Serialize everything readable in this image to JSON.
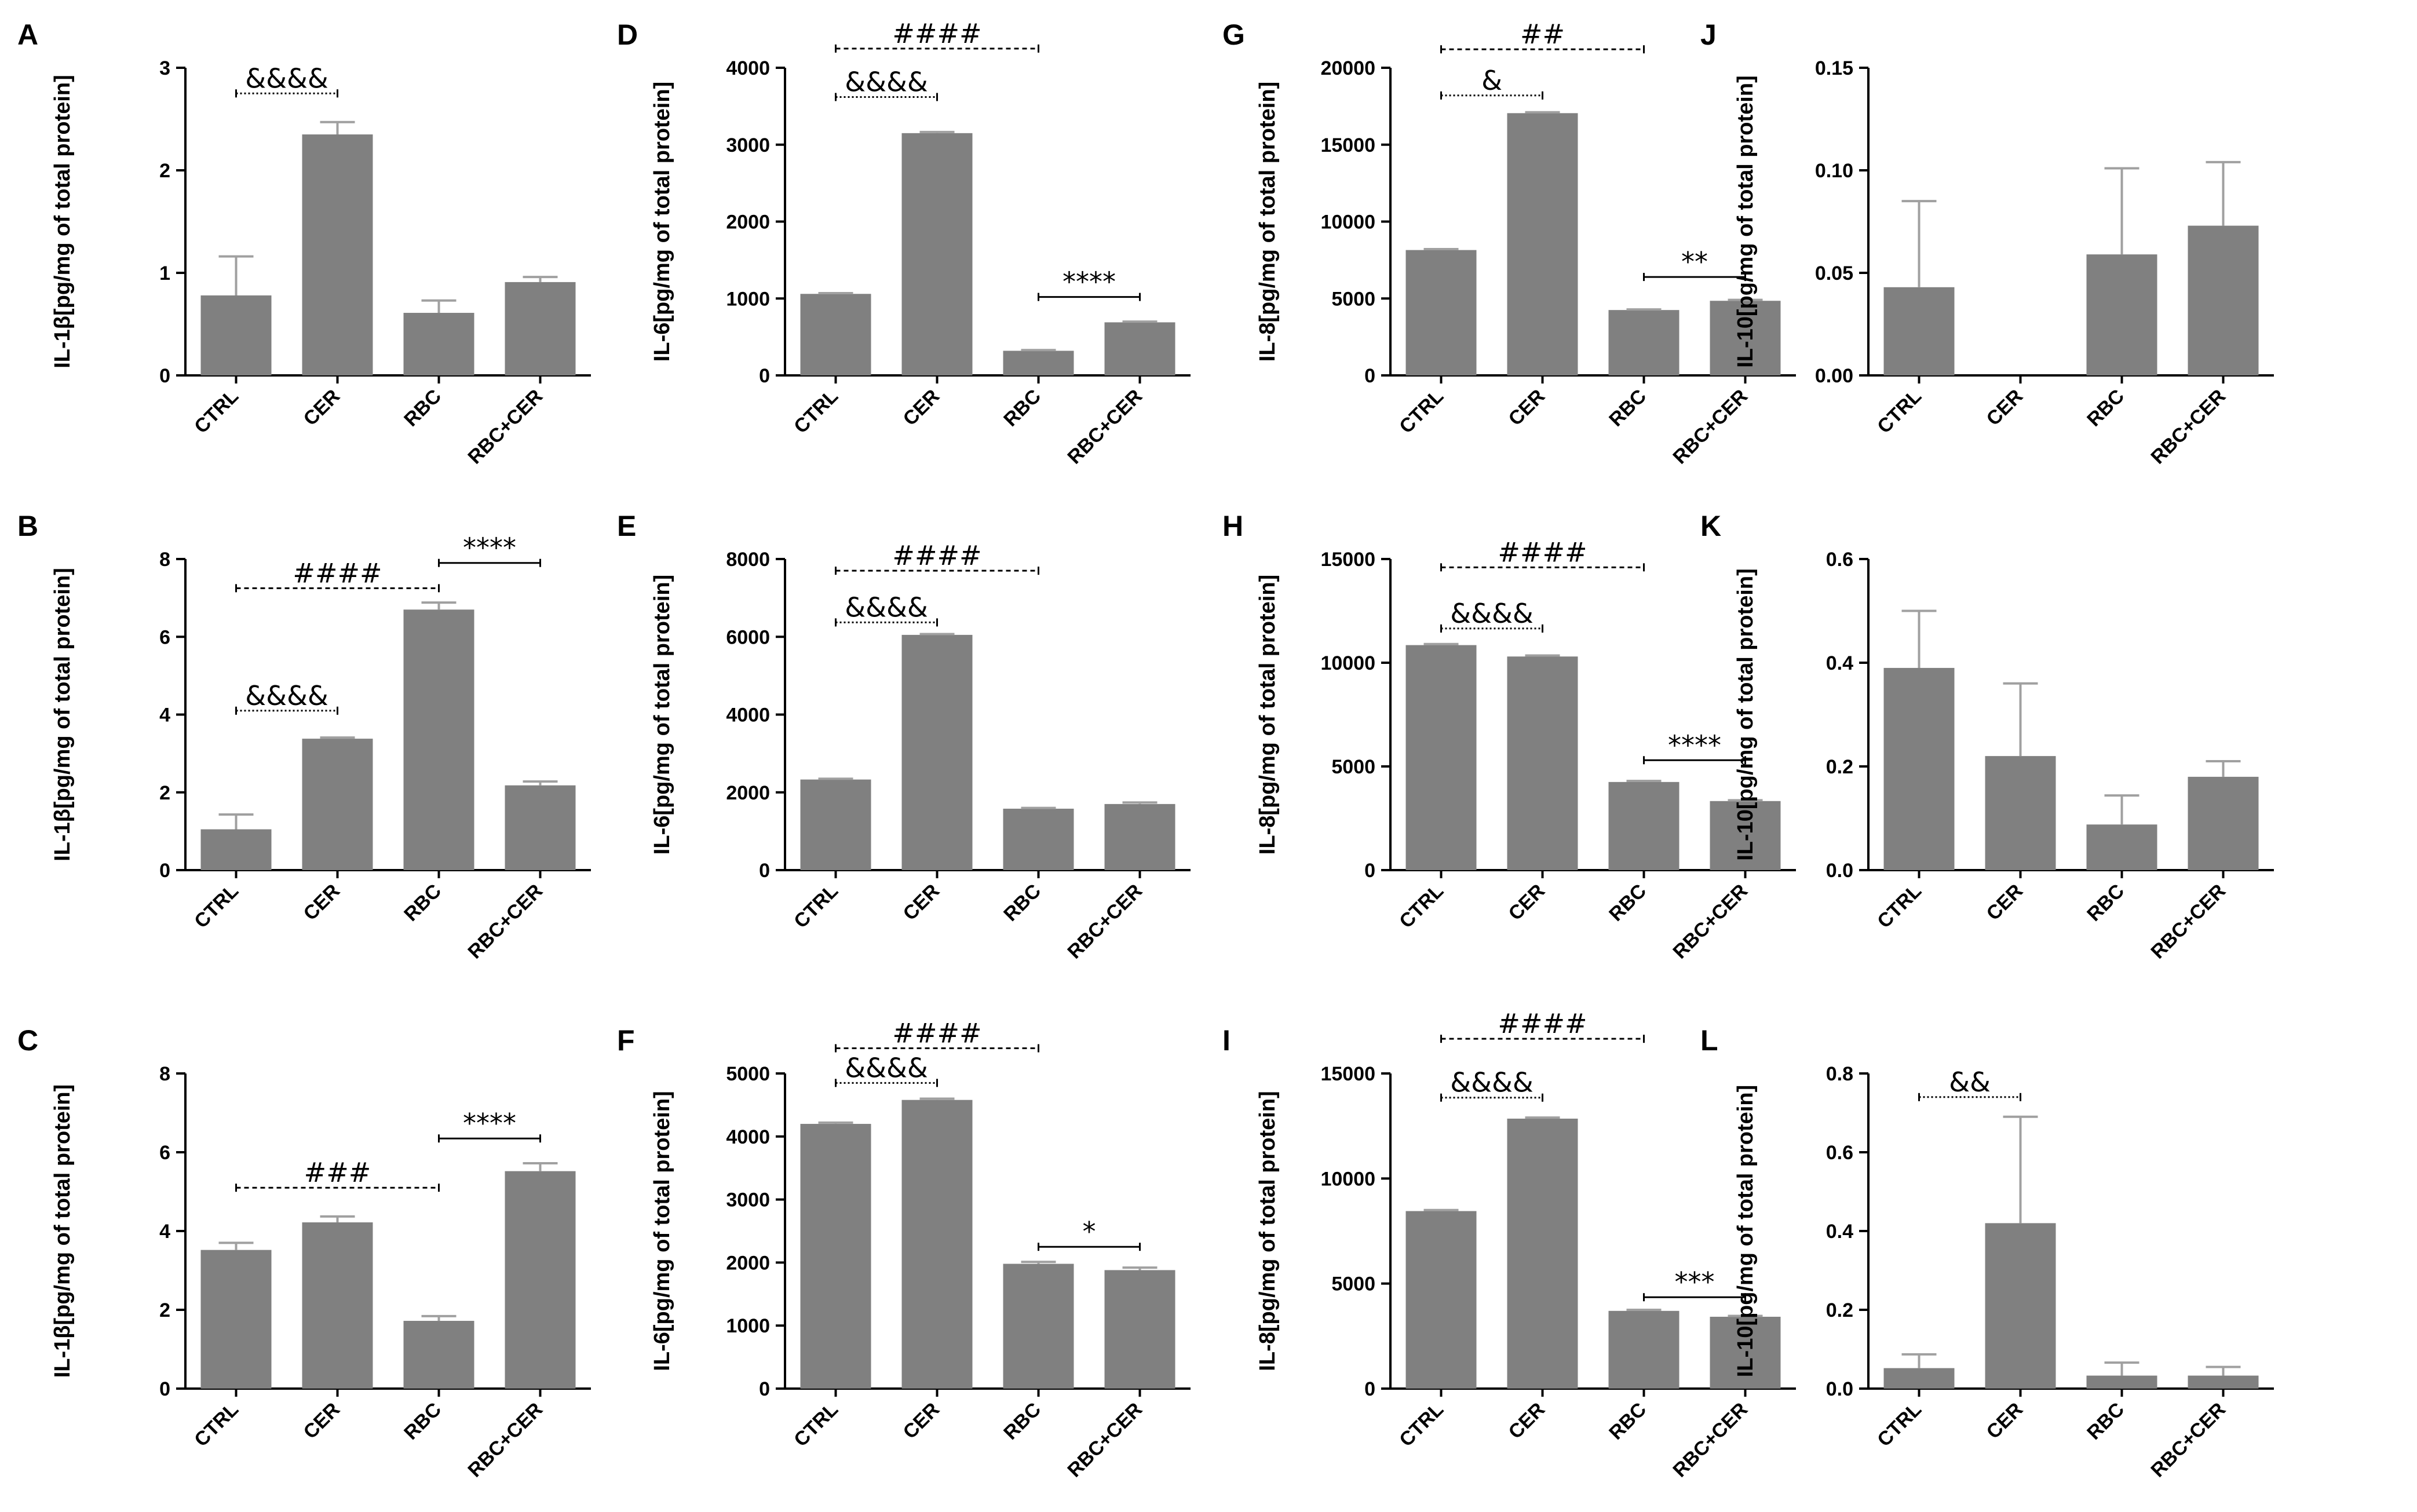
{
  "figure": {
    "bar_color": "#808080",
    "error_color": "#a0a0a0",
    "axis_color": "#000000"
  },
  "chart_data": [
    {
      "panel": "A",
      "type": "bar",
      "ylabel": "IL-1β[pg/mg of total protein]",
      "categories": [
        "CTRL",
        "CER",
        "RBC",
        "RBC+CER"
      ],
      "values": [
        0.78,
        2.35,
        0.61,
        0.91
      ],
      "errors": [
        0.38,
        0.12,
        0.12,
        0.05
      ],
      "ylim": [
        0,
        3
      ],
      "yticks": [
        "0",
        "1",
        "2",
        "3"
      ],
      "annotations": [
        {
          "text": "&&&&",
          "from": 0,
          "to": 1,
          "y": 2.75,
          "style": "dotted"
        }
      ]
    },
    {
      "panel": "D",
      "type": "bar",
      "ylabel": "IL-6[pg/mg of total protein]",
      "categories": [
        "CTRL",
        "CER",
        "RBC",
        "RBC+CER"
      ],
      "values": [
        1060,
        3150,
        320,
        690
      ],
      "errors": [
        10,
        15,
        10,
        10
      ],
      "ylim": [
        0,
        4000
      ],
      "yticks": [
        "0",
        "1000",
        "2000",
        "3000",
        "4000"
      ],
      "annotations": [
        {
          "text": "####",
          "from": 0,
          "to": 2,
          "y": 4250,
          "style": "dashed"
        },
        {
          "text": "&&&&",
          "from": 0,
          "to": 1,
          "y": 3620,
          "style": "dotted"
        },
        {
          "text": "****",
          "from": 2,
          "to": 3,
          "y": 1020,
          "style": "solid"
        }
      ]
    },
    {
      "panel": "G",
      "type": "bar",
      "ylabel": "IL-8[pg/mg of total protein]",
      "categories": [
        "CTRL",
        "CER",
        "RBC",
        "RBC+CER"
      ],
      "values": [
        8150,
        17050,
        4250,
        4850
      ],
      "errors": [
        60,
        60,
        40,
        60
      ],
      "ylim": [
        0,
        20000
      ],
      "yticks": [
        "0",
        "5000",
        "10000",
        "15000",
        "20000"
      ],
      "annotations": [
        {
          "text": "##",
          "from": 0,
          "to": 2,
          "y": 21200,
          "style": "dashed"
        },
        {
          "text": "&",
          "from": 0,
          "to": 1,
          "y": 18200,
          "style": "dotted"
        },
        {
          "text": "**",
          "from": 2,
          "to": 3,
          "y": 6400,
          "style": "solid"
        }
      ]
    },
    {
      "panel": "J",
      "type": "bar",
      "ylabel": "IL-10[pg/mg of total protein]",
      "categories": [
        "CTRL",
        "CER",
        "RBC",
        "RBC+CER"
      ],
      "values": [
        0.043,
        0.0,
        0.059,
        0.073
      ],
      "errors": [
        0.042,
        0.0,
        0.042,
        0.031
      ],
      "ylim": [
        0,
        0.15
      ],
      "yticks": [
        "0.00",
        "0.05",
        "0.10",
        "0.15"
      ],
      "annotations": []
    },
    {
      "panel": "B",
      "type": "bar",
      "ylabel": "IL-1β[pg/mg of total protein]",
      "categories": [
        "CTRL",
        "CER",
        "RBC",
        "RBC+CER"
      ],
      "values": [
        1.05,
        3.38,
        6.7,
        2.18
      ],
      "errors": [
        0.38,
        0.03,
        0.18,
        0.1
      ],
      "ylim": [
        0,
        8
      ],
      "yticks": [
        "0",
        "2",
        "4",
        "6",
        "8"
      ],
      "annotations": [
        {
          "text": "####",
          "from": 0,
          "to": 2,
          "y": 7.25,
          "style": "dashed"
        },
        {
          "text": "****",
          "from": 2,
          "to": 3,
          "y": 7.9,
          "style": "solid"
        },
        {
          "text": "&&&&",
          "from": 0,
          "to": 1,
          "y": 4.1,
          "style": "dotted"
        }
      ]
    },
    {
      "panel": "E",
      "type": "bar",
      "ylabel": "IL-6[pg/mg of total protein]",
      "categories": [
        "CTRL",
        "CER",
        "RBC",
        "RBC+CER"
      ],
      "values": [
        2330,
        6050,
        1580,
        1700
      ],
      "errors": [
        20,
        20,
        20,
        40
      ],
      "ylim": [
        0,
        8000
      ],
      "yticks": [
        "0",
        "2000",
        "4000",
        "6000",
        "8000"
      ],
      "annotations": [
        {
          "text": "####",
          "from": 0,
          "to": 2,
          "y": 7700,
          "style": "dashed"
        },
        {
          "text": "&&&&",
          "from": 0,
          "to": 1,
          "y": 6370,
          "style": "dotted"
        }
      ]
    },
    {
      "panel": "H",
      "type": "bar",
      "ylabel": "IL-8[pg/mg of total protein]",
      "categories": [
        "CTRL",
        "CER",
        "RBC",
        "RBC+CER"
      ],
      "values": [
        10850,
        10300,
        4250,
        3330
      ],
      "errors": [
        50,
        50,
        50,
        40
      ],
      "ylim": [
        0,
        15000
      ],
      "yticks": [
        "0",
        "5000",
        "10000",
        "15000"
      ],
      "annotations": [
        {
          "text": "####",
          "from": 0,
          "to": 2,
          "y": 14600,
          "style": "dashed"
        },
        {
          "text": "&&&&",
          "from": 0,
          "to": 1,
          "y": 11650,
          "style": "dotted"
        },
        {
          "text": "****",
          "from": 2,
          "to": 3,
          "y": 5300,
          "style": "solid"
        }
      ]
    },
    {
      "panel": "K",
      "type": "bar",
      "ylabel": "IL-10[pg/mg of total protein]",
      "categories": [
        "CTRL",
        "CER",
        "RBC",
        "RBC+CER"
      ],
      "values": [
        0.39,
        0.22,
        0.088,
        0.18
      ],
      "errors": [
        0.11,
        0.14,
        0.056,
        0.03
      ],
      "ylim": [
        0,
        0.6
      ],
      "yticks": [
        "0.0",
        "0.2",
        "0.4",
        "0.6"
      ],
      "annotations": []
    },
    {
      "panel": "C",
      "type": "bar",
      "ylabel": "IL-1β[pg/mg of total protein]",
      "categories": [
        "CTRL",
        "CER",
        "RBC",
        "RBC+CER"
      ],
      "values": [
        3.52,
        4.22,
        1.72,
        5.52
      ],
      "errors": [
        0.18,
        0.15,
        0.12,
        0.2
      ],
      "ylim": [
        0,
        8
      ],
      "yticks": [
        "0",
        "2",
        "4",
        "6",
        "8"
      ],
      "annotations": [
        {
          "text": "###",
          "from": 0,
          "to": 2,
          "y": 5.1,
          "style": "dashed"
        },
        {
          "text": "****",
          "from": 2,
          "to": 3,
          "y": 6.35,
          "style": "solid"
        }
      ]
    },
    {
      "panel": "F",
      "type": "bar",
      "ylabel": "IL-6[pg/mg of total protein]",
      "categories": [
        "CTRL",
        "CER",
        "RBC",
        "RBC+CER"
      ],
      "values": [
        4200,
        4580,
        1980,
        1880
      ],
      "errors": [
        20,
        20,
        30,
        40
      ],
      "ylim": [
        0,
        5000
      ],
      "yticks": [
        "0",
        "1000",
        "2000",
        "3000",
        "4000",
        "5000"
      ],
      "annotations": [
        {
          "text": "####",
          "from": 0,
          "to": 2,
          "y": 5400,
          "style": "dashed"
        },
        {
          "text": "&&&&",
          "from": 0,
          "to": 1,
          "y": 4850,
          "style": "dotted"
        },
        {
          "text": "*",
          "from": 2,
          "to": 3,
          "y": 2250,
          "style": "solid"
        }
      ]
    },
    {
      "panel": "I",
      "type": "bar",
      "ylabel": "IL-8[pg/mg of total protein]",
      "categories": [
        "CTRL",
        "CER",
        "RBC",
        "RBC+CER"
      ],
      "values": [
        8450,
        12850,
        3700,
        3420
      ],
      "errors": [
        50,
        50,
        50,
        40
      ],
      "ylim": [
        0,
        15000
      ],
      "yticks": [
        "0",
        "5000",
        "10000",
        "15000"
      ],
      "annotations": [
        {
          "text": "####",
          "from": 0,
          "to": 2,
          "y": 16650,
          "style": "dashed"
        },
        {
          "text": "&&&&",
          "from": 0,
          "to": 1,
          "y": 13850,
          "style": "dotted"
        },
        {
          "text": "***",
          "from": 2,
          "to": 3,
          "y": 4350,
          "style": "solid"
        }
      ]
    },
    {
      "panel": "L",
      "type": "bar",
      "ylabel": "IL-10[pg/mg of total protein]",
      "categories": [
        "CTRL",
        "CER",
        "RBC",
        "RBC+CER"
      ],
      "values": [
        0.052,
        0.42,
        0.033,
        0.033
      ],
      "errors": [
        0.035,
        0.27,
        0.033,
        0.022
      ],
      "ylim": [
        0,
        0.8
      ],
      "yticks": [
        "0.0",
        "0.2",
        "0.4",
        "0.6",
        "0.8"
      ],
      "annotations": [
        {
          "text": "&&",
          "from": 0,
          "to": 1,
          "y": 0.74,
          "style": "dotted"
        }
      ]
    }
  ]
}
